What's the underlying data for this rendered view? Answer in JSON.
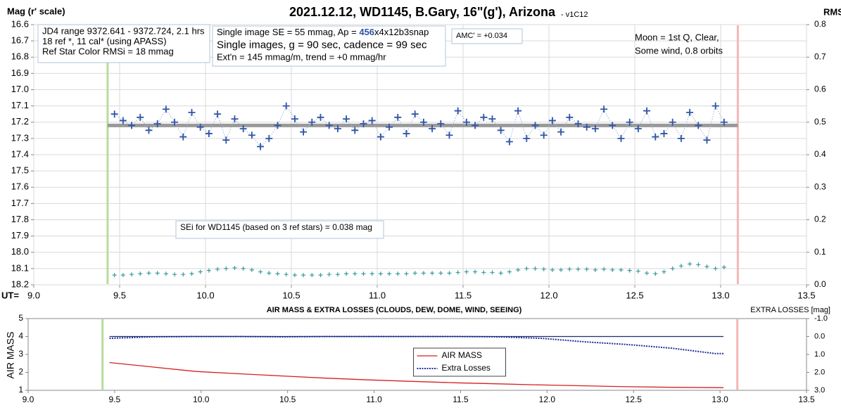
{
  "chart_data": [
    {
      "type": "scatter",
      "title": "2021.12.12, WD1145, B.Gary, 16\"(g'), Arizona",
      "subtitle": "- v1C12",
      "y_label": "Mag (r' scale)",
      "y2_label": "RMS i",
      "x_label": "UT=",
      "xlim": [
        9,
        13.5
      ],
      "xticks": [
        {
          "value": 9,
          "label": "9.0"
        },
        9.5,
        {
          "value": 10,
          "label": "10.0"
        },
        10.5,
        {
          "value": 11,
          "label": "11.0"
        },
        11.5,
        {
          "value": 12,
          "label": "12.0"
        },
        12.5,
        {
          "value": 13,
          "label": "13.0"
        },
        13.5
      ],
      "ylim": [
        16.6,
        18.2
      ],
      "y_inverted": true,
      "yticks": [
        16.6,
        16.7,
        16.8,
        16.9,
        {
          "value": 17,
          "label": "17.0"
        },
        17.1,
        17.2,
        17.3,
        17.4,
        17.5,
        17.6,
        17.7,
        17.8,
        17.9,
        {
          "value": 18,
          "label": "18.0"
        },
        18.1,
        18.2
      ],
      "y2lim": [
        0,
        0.8
      ],
      "y2ticks": [
        {
          "value": 0,
          "label": "0.0"
        },
        0.1,
        0.2,
        0.3,
        0.4,
        0.5,
        0.6,
        0.7,
        0.8
      ],
      "grid": true,
      "x": [
        9.47,
        9.52,
        9.57,
        9.62,
        9.67,
        9.72,
        9.77,
        9.82,
        9.87,
        9.92,
        9.97,
        10.02,
        10.07,
        10.12,
        10.17,
        10.22,
        10.27,
        10.32,
        10.37,
        10.42,
        10.47,
        10.52,
        10.57,
        10.62,
        10.67,
        10.72,
        10.77,
        10.82,
        10.87,
        10.92,
        10.97,
        11.02,
        11.07,
        11.12,
        11.17,
        11.22,
        11.27,
        11.32,
        11.37,
        11.42,
        11.47,
        11.52,
        11.57,
        11.62,
        11.67,
        11.72,
        11.77,
        11.82,
        11.87,
        11.92,
        11.97,
        12.02,
        12.07,
        12.12,
        12.17,
        12.22,
        12.27,
        12.32,
        12.37,
        12.42,
        12.47,
        12.52,
        12.57,
        12.62,
        12.67,
        12.72,
        12.77,
        12.82,
        12.87,
        12.92,
        12.97,
        13.02
      ],
      "series": [
        {
          "color": "#2f55a4",
          "marker": "plus",
          "line": "dotted",
          "values": [
            17.15,
            17.19,
            17.22,
            17.17,
            17.25,
            17.21,
            17.12,
            17.2,
            17.29,
            17.14,
            17.23,
            17.27,
            17.15,
            17.31,
            17.18,
            17.24,
            17.28,
            17.35,
            17.3,
            17.22,
            17.1,
            17.18,
            17.26,
            17.2,
            17.17,
            17.22,
            17.24,
            17.18,
            17.25,
            17.21,
            17.19,
            17.29,
            17.23,
            17.17,
            17.27,
            17.15,
            17.2,
            17.24,
            17.21,
            17.28,
            17.13,
            17.2,
            17.22,
            17.17,
            17.18,
            17.25,
            17.32,
            17.13,
            17.3,
            17.22,
            17.28,
            17.19,
            17.26,
            17.17,
            17.21,
            17.23,
            17.24,
            17.12,
            17.22,
            17.3,
            17.2,
            17.24,
            17.13,
            17.29,
            17.27,
            17.2,
            17.3,
            17.14,
            17.22,
            17.31,
            17.1,
            17.2
          ]
        },
        {
          "color": "#3a9aa0",
          "marker": "small-plus",
          "axis": "y2",
          "values": [
            0.03,
            0.03,
            0.032,
            0.034,
            0.036,
            0.036,
            0.034,
            0.032,
            0.032,
            0.034,
            0.04,
            0.044,
            0.048,
            0.05,
            0.052,
            0.05,
            0.046,
            0.04,
            0.036,
            0.034,
            0.032,
            0.03,
            0.03,
            0.03,
            0.03,
            0.032,
            0.032,
            0.034,
            0.034,
            0.034,
            0.034,
            0.034,
            0.034,
            0.034,
            0.034,
            0.036,
            0.036,
            0.036,
            0.036,
            0.036,
            0.038,
            0.04,
            0.04,
            0.038,
            0.038,
            0.036,
            0.04,
            0.046,
            0.05,
            0.05,
            0.048,
            0.046,
            0.046,
            0.048,
            0.048,
            0.048,
            0.046,
            0.048,
            0.046,
            0.046,
            0.044,
            0.042,
            0.036,
            0.034,
            0.04,
            0.05,
            0.058,
            0.064,
            0.062,
            0.056,
            0.05,
            0.054
          ]
        }
      ],
      "reference_line": {
        "y": 17.22,
        "x": [
          9.43,
          13.1
        ],
        "color": "#999999"
      },
      "vlines": [
        {
          "x": 9.43,
          "color": "#b8dc9c"
        },
        {
          "x": 13.1,
          "color": "#f4b6b6"
        }
      ],
      "annotations": [
        {
          "lines": [
            "JD4 range 9372.641 - 9372.724, 2.1 hrs",
            "18 ref *, 11 cal* (using APASS)",
            "Ref Star Color RMSi = 18 mmag"
          ]
        },
        {
          "lines": [
            [
              "Single image SE = 55 mmag, Ap = ",
              "456",
              "x4x12b3snap"
            ],
            "Single images, g = 90 sec, cadence = 99 sec",
            "Ext'n = 145 mmag/m, trend = +0 mmag/hr"
          ]
        },
        {
          "lines": [
            "AMC' = +0.034"
          ]
        },
        {
          "lines": [
            "Moon = 1st Q, Clear,",
            "Some wind, 0.8 orbits"
          ]
        },
        {
          "lines": [
            "SEi for WD1145 (based on 3 ref stars) = 0.038 mag"
          ]
        }
      ]
    },
    {
      "type": "line",
      "title": "AIR MASS & EXTRA LOSSES (CLOUDS, DEW, DOME, WIND, SEEING)",
      "y_label": "AIR MASS",
      "y2_label": "EXTRA LOSSES [mag]",
      "xlim": [
        9,
        13.5
      ],
      "xticks": [
        {
          "value": 9,
          "label": "9.0"
        },
        9.5,
        {
          "value": 10,
          "label": "10.0"
        },
        10.5,
        {
          "value": 11,
          "label": "11.0"
        },
        11.5,
        {
          "value": 12,
          "label": "12.0"
        },
        12.5,
        {
          "value": 13,
          "label": "13.0"
        },
        13.5
      ],
      "ylim": [
        1,
        5
      ],
      "yticks": [
        1,
        2,
        3,
        4,
        5
      ],
      "y2lim": [
        -1,
        3
      ],
      "y2_inverted": true,
      "y2ticks": [
        {
          "value": -1,
          "label": "-1.0"
        },
        {
          "value": 0,
          "label": "0.0"
        },
        {
          "value": 1,
          "label": "1.0"
        },
        {
          "value": 2,
          "label": "2.0"
        },
        {
          "value": 3,
          "label": "3.0"
        }
      ],
      "grid": false,
      "legend": "bottom-center",
      "x": [
        9.47,
        9.72,
        9.97,
        10.22,
        10.47,
        10.72,
        10.97,
        11.22,
        11.47,
        11.72,
        11.97,
        12.22,
        12.47,
        12.72,
        12.97,
        13.02
      ],
      "series": [
        {
          "name": "AIR MASS",
          "color": "#d62020",
          "line": "solid",
          "values": [
            2.55,
            2.3,
            2.05,
            1.92,
            1.8,
            1.68,
            1.58,
            1.5,
            1.42,
            1.36,
            1.3,
            1.25,
            1.2,
            1.17,
            1.15,
            1.15
          ]
        },
        {
          "name": "Extra Losses",
          "color": "#1f2f9a",
          "line": "dotted",
          "axis": "y2",
          "values": [
            0.1,
            0.02,
            0,
            0,
            0.02,
            0,
            0,
            0,
            0,
            0.02,
            0.1,
            0.3,
            0.45,
            0.65,
            0.95,
            0.95
          ]
        }
      ],
      "reference_line": {
        "y": 0,
        "axis": "y2",
        "x": [
          9.47,
          13.02
        ],
        "color": "#1f2f6a"
      },
      "vlines": [
        {
          "x": 9.43,
          "color": "#b8dc9c"
        },
        {
          "x": 13.1,
          "color": "#f4b6b6"
        }
      ]
    }
  ]
}
